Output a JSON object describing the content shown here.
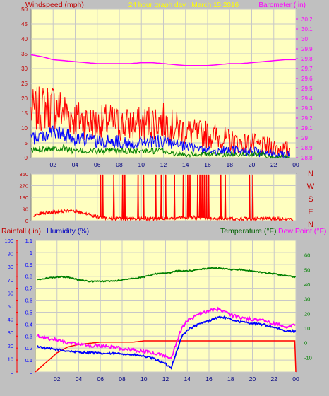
{
  "header": {
    "left_title": "Windspeed (mph)",
    "center_title": "24 hour graph day : March 15 2016",
    "right_title": "Barometer (.in)"
  },
  "colors": {
    "plot_bg": "#ffffc0",
    "frame_bg": "#c0c0c0",
    "grid": "#c8c8c8",
    "red": "#ff0000",
    "blue": "#0000ff",
    "green": "#008000",
    "magenta": "#ff00ff",
    "dark_green": "#008000",
    "title_yellow": "#ffff00",
    "dark_red": "#c00000"
  },
  "x_ticks": [
    "02",
    "04",
    "06",
    "08",
    "10",
    "12",
    "14",
    "16",
    "18",
    "20",
    "22",
    "00"
  ],
  "chart_data": [
    {
      "type": "line",
      "name": "wind-barometer",
      "title": "24 hour graph day : March 15 2016",
      "ylabel": "Windspeed (mph)",
      "y2label": "Barometer (.in)",
      "ylim": [
        0,
        50
      ],
      "y2lim": [
        28.8,
        30.3
      ],
      "y_ticks": [
        0,
        5,
        10,
        15,
        20,
        25,
        30,
        35,
        40,
        45,
        50
      ],
      "y2_ticks": [
        "28.8",
        "28.9",
        "29",
        "29.1",
        "29.2",
        "29.3",
        "29.4",
        "29.5",
        "29.6",
        "29.7",
        "29.8",
        "29.9",
        "30",
        "30.1",
        "30.2"
      ],
      "x": [
        0,
        1,
        2,
        3,
        4,
        5,
        6,
        7,
        8,
        9,
        10,
        11,
        12,
        13,
        14,
        15,
        16,
        17,
        18,
        19,
        20,
        21,
        22,
        23,
        24
      ],
      "series": [
        {
          "key": "gust",
          "color": "#ff0000",
          "axis": "left",
          "values": [
            14,
            15,
            16,
            14,
            12,
            11,
            10,
            11,
            10,
            10,
            10,
            11,
            11,
            9,
            8,
            7,
            7,
            6,
            5,
            4,
            4,
            3,
            3,
            2,
            2
          ]
        },
        {
          "key": "avg",
          "color": "#0000ff",
          "axis": "left",
          "values": [
            6,
            7,
            8,
            7,
            6,
            6,
            5,
            5,
            5,
            4,
            5,
            5,
            5,
            4,
            3,
            3,
            2,
            2,
            2,
            2,
            2,
            1,
            1,
            1,
            1
          ]
        },
        {
          "key": "low",
          "color": "#008000",
          "axis": "left",
          "values": [
            2,
            3,
            3,
            3,
            2,
            2,
            2,
            2,
            2,
            2,
            2,
            2,
            2,
            1,
            1,
            1,
            1,
            1,
            1,
            1,
            1,
            1,
            0,
            0,
            0
          ]
        },
        {
          "key": "barometer",
          "color": "#ff00ff",
          "axis": "right",
          "values": [
            29.84,
            29.82,
            29.79,
            29.78,
            29.77,
            29.76,
            29.75,
            29.75,
            29.75,
            29.75,
            29.76,
            29.76,
            29.75,
            29.74,
            29.73,
            29.73,
            29.73,
            29.74,
            29.75,
            29.75,
            29.76,
            29.77,
            29.78,
            29.79,
            29.79
          ]
        }
      ]
    },
    {
      "type": "line",
      "name": "wind-direction",
      "ylim": [
        0,
        360
      ],
      "y_ticks": [
        0,
        90,
        180,
        270,
        360
      ],
      "right_labels": [
        "N",
        "W",
        "S",
        "E",
        "N"
      ],
      "direction_color": "#ff0000",
      "base_direction": [
        35,
        60,
        65,
        75,
        70,
        55,
        30,
        20,
        15,
        15,
        15,
        15,
        15,
        20,
        25,
        25,
        20,
        15,
        15,
        15,
        15,
        15,
        15,
        15,
        15
      ],
      "north_spikes_hour": [
        6.3,
        6.5,
        7.5,
        8.3,
        8.5,
        9.7,
        10.2,
        11.3,
        11.8,
        12.2,
        13.0,
        13.8,
        14.2,
        14.4,
        15.1,
        15.3,
        15.5,
        15.7,
        15.9,
        16.1,
        17.2,
        17.6,
        19.8,
        20.1
      ]
    },
    {
      "type": "line",
      "name": "rain-humidity-temperature",
      "labels": {
        "rainfall": "Rainfall (.in)",
        "humidity": "Humidity (%)",
        "temperature": "Temperature (°F)",
        "dewpoint": "Dew Point (°F)"
      },
      "humidity_ticks": [
        0,
        10,
        20,
        30,
        40,
        50,
        60,
        70,
        80,
        90,
        100
      ],
      "rain_ticks": [
        "0",
        "0.1",
        "0.2",
        "0.3",
        "0.4",
        "0.5",
        "0.6",
        "0.7",
        "0.8",
        "0.9",
        "1",
        "1.1"
      ],
      "temp_ticks": [
        -10,
        0,
        10,
        20,
        30,
        40,
        50,
        60
      ],
      "ylim_humidity": [
        0,
        100
      ],
      "ylim_rain": [
        0,
        1.1
      ],
      "ylim_temp": [
        -20,
        70
      ],
      "x": [
        0,
        1,
        2,
        3,
        4,
        5,
        6,
        7,
        8,
        9,
        10,
        11,
        12,
        12.5,
        13,
        13.5,
        14,
        15,
        16,
        17,
        18,
        19,
        20,
        21,
        22,
        23,
        24
      ],
      "series": [
        {
          "key": "rain",
          "color": "#ff0000",
          "axis": "rain",
          "values": [
            0,
            0.08,
            0.16,
            0.21,
            0.23,
            0.24,
            0.25,
            0.25,
            0.25,
            0.25,
            0.26,
            0.26,
            0.26,
            0.26,
            0.26,
            0.26,
            0.26,
            0.26,
            0.26,
            0.26,
            0.26,
            0.26,
            0.26,
            0.26,
            0.26,
            0.26,
            0.26
          ]
        },
        {
          "key": "humidity",
          "color": "#0000ff",
          "axis": "humidity",
          "values": [
            20,
            18,
            17,
            16,
            15,
            15,
            14,
            14,
            14,
            13,
            12,
            10,
            6,
            3,
            15,
            27,
            32,
            36,
            39,
            42,
            40,
            38,
            37,
            36,
            34,
            31,
            31
          ]
        },
        {
          "key": "temperature",
          "color": "#008000",
          "axis": "temp",
          "values": [
            43,
            44,
            45,
            45,
            43,
            42,
            42,
            42,
            43,
            44,
            45,
            47,
            48,
            48,
            49,
            49,
            49,
            50,
            51,
            51,
            50,
            50,
            49,
            48,
            47,
            46,
            45
          ]
        },
        {
          "key": "dewpoint",
          "color": "#ff00ff",
          "axis": "temp",
          "values": [
            5,
            3,
            2,
            0,
            -1,
            -2,
            -2,
            -3,
            -4,
            -5,
            -6,
            -7,
            -9,
            -11,
            0,
            10,
            15,
            19,
            22,
            23,
            19,
            17,
            16,
            15,
            13,
            11,
            12
          ]
        }
      ]
    }
  ]
}
